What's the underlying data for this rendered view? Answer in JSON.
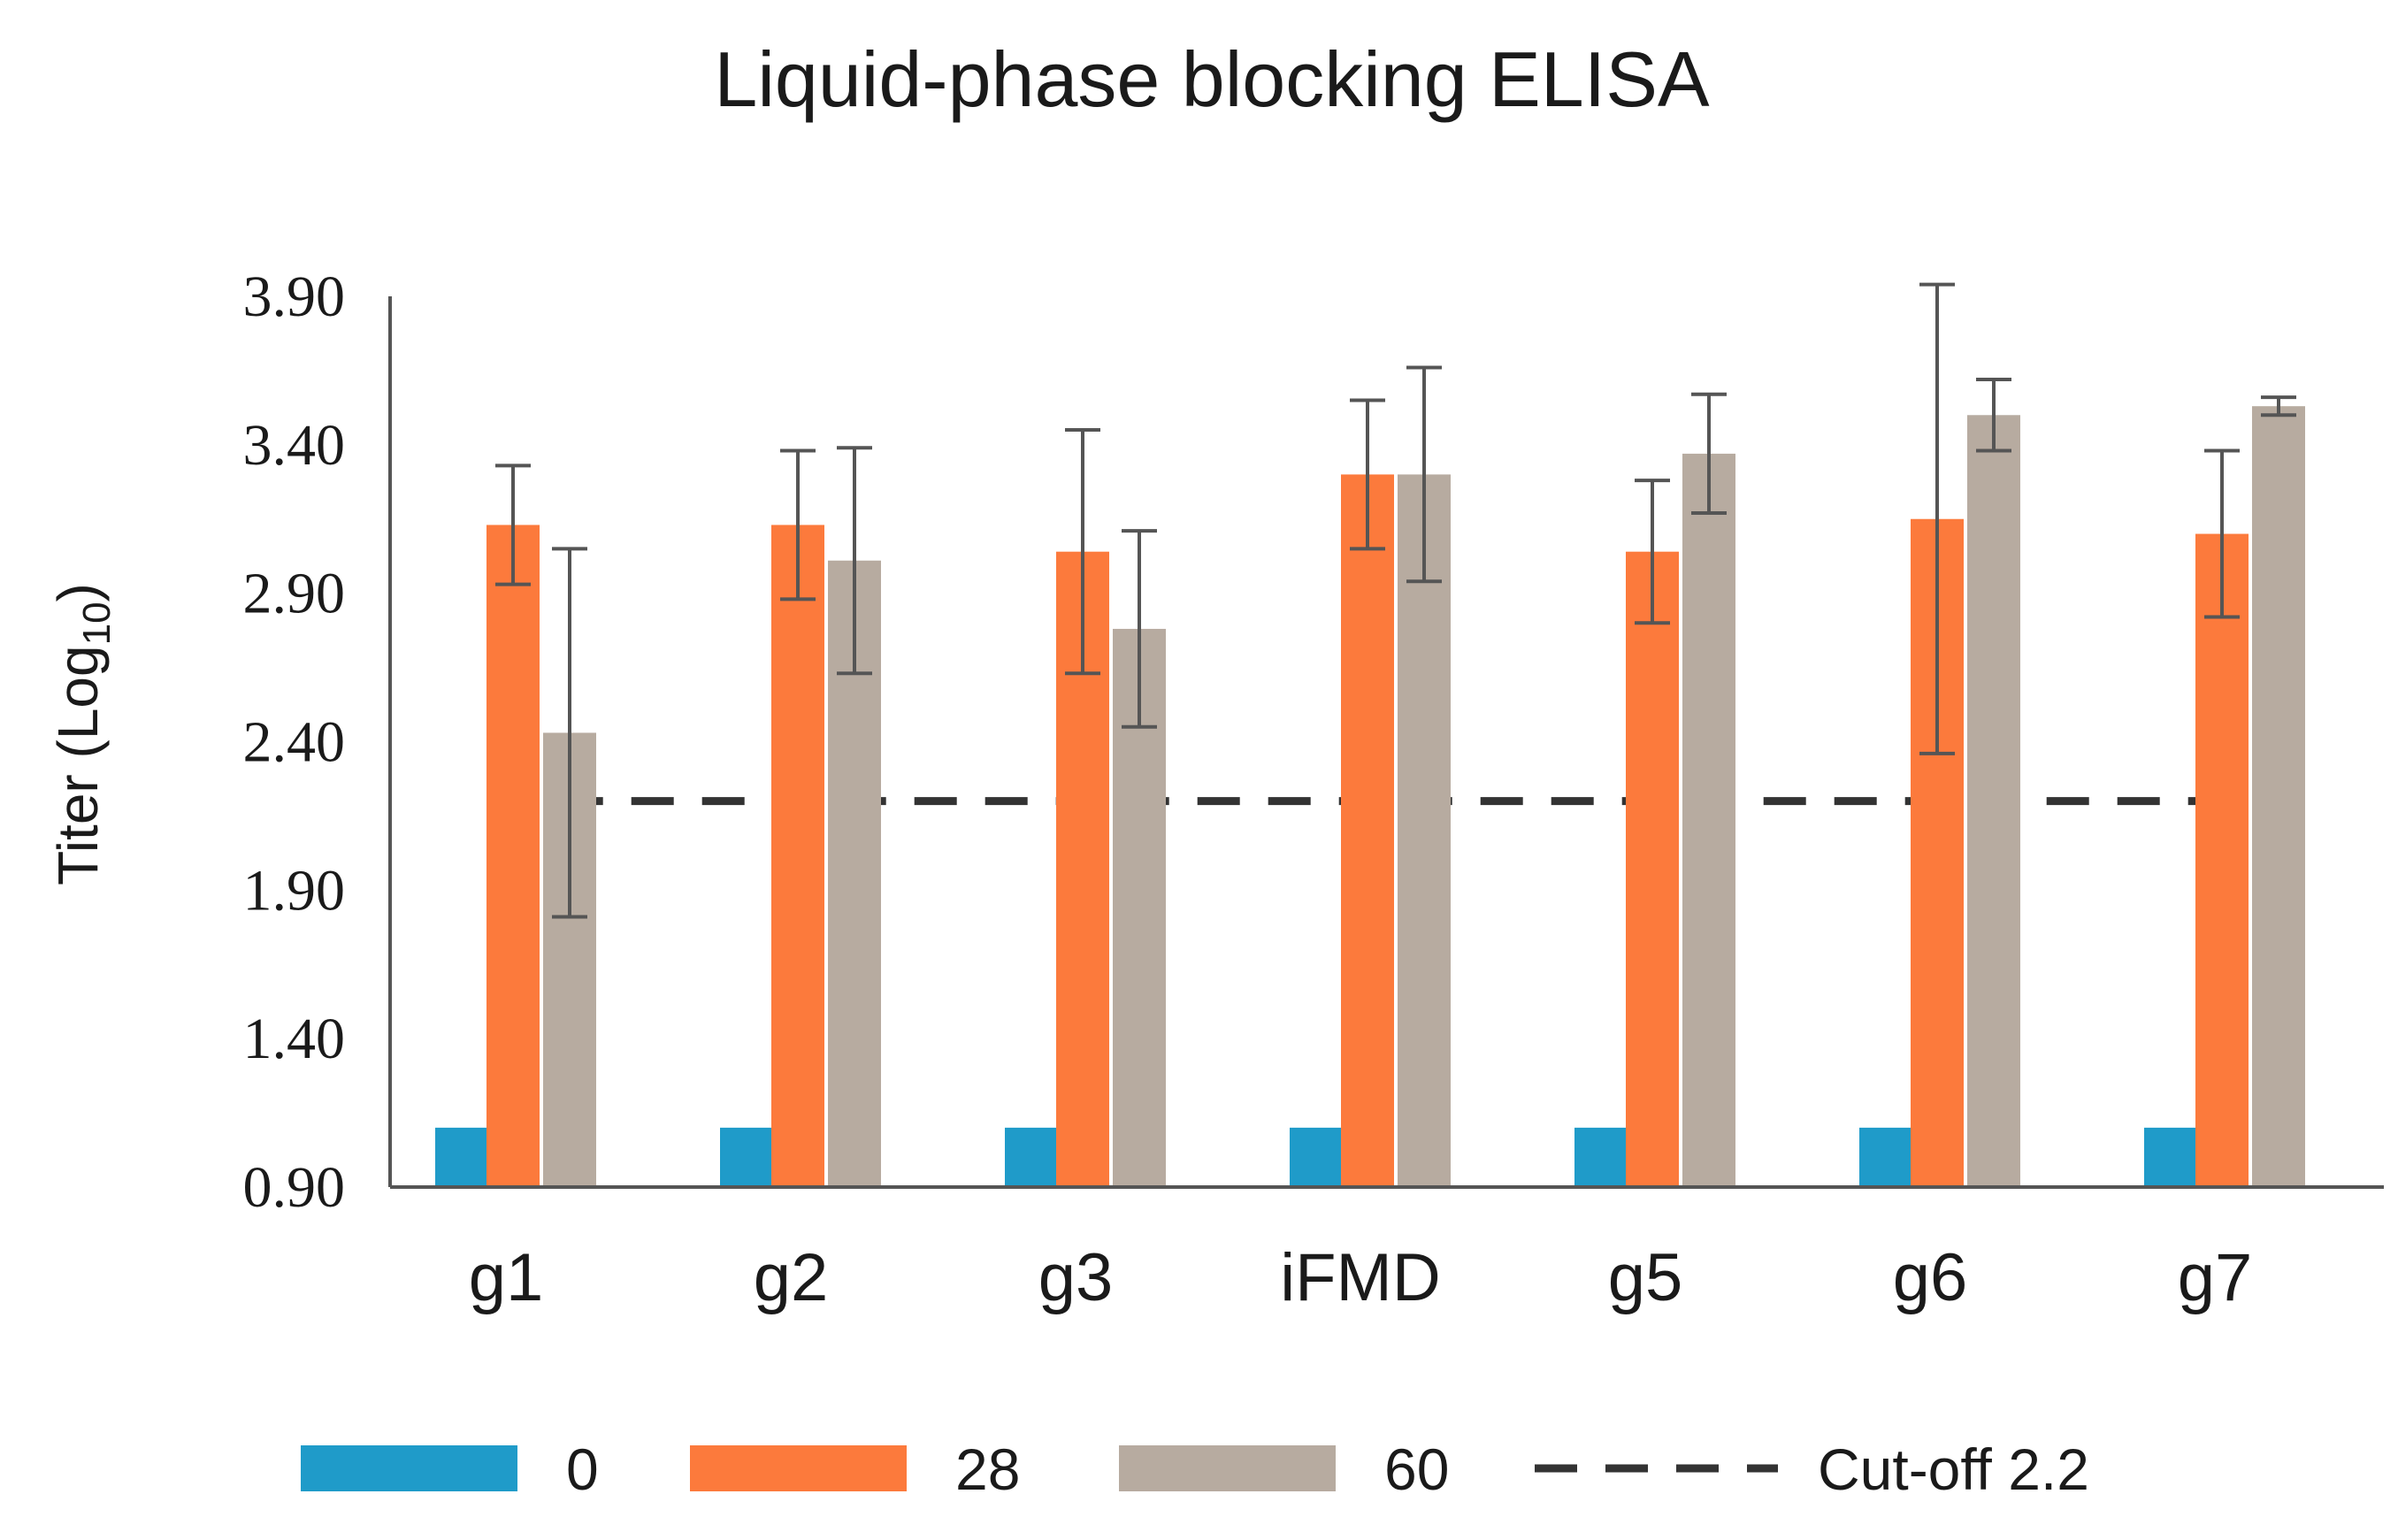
{
  "chart_data": {
    "type": "bar",
    "title": "Liquid-phase blocking ELISA",
    "ylabel": "Titer (Log",
    "ylabel_sub": "10",
    "ylabel_close": ")",
    "xlabel": "",
    "ylim": [
      0.9,
      3.9
    ],
    "yticks": [
      "3.90",
      "3.40",
      "2.90",
      "2.40",
      "1.90",
      "1.40",
      "0.90"
    ],
    "grid": false,
    "legend_position": "bottom",
    "categories": [
      "g1",
      "g2",
      "g3",
      "iFMD",
      "g5",
      "g6",
      "g7"
    ],
    "series": [
      {
        "name": "0",
        "color": "#1f9bc9",
        "values": [
          1.1,
          1.1,
          1.1,
          1.1,
          1.1,
          1.1,
          1.1
        ],
        "errors": [
          null,
          null,
          null,
          null,
          null,
          null,
          null
        ]
      },
      {
        "name": "28",
        "color": "#fc7a3c",
        "values": [
          3.13,
          3.13,
          3.04,
          3.3,
          3.04,
          3.15,
          3.1
        ],
        "errors": [
          0.2,
          0.25,
          0.41,
          0.25,
          0.24,
          0.79,
          0.28
        ]
      },
      {
        "name": "60",
        "color": "#b7aba0",
        "values": [
          2.43,
          3.01,
          2.78,
          3.3,
          3.37,
          3.5,
          3.53
        ],
        "errors": [
          0.62,
          0.38,
          0.33,
          0.36,
          0.2,
          0.12,
          0.03
        ]
      }
    ],
    "cutoff": {
      "label": "Cut-off 2.2",
      "value": 2.2,
      "color": "#333333"
    }
  }
}
